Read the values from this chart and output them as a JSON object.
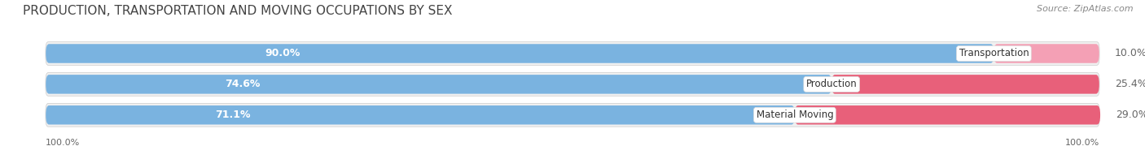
{
  "title": "PRODUCTION, TRANSPORTATION AND MOVING OCCUPATIONS BY SEX",
  "source": "Source: ZipAtlas.com",
  "categories": [
    "Transportation",
    "Production",
    "Material Moving"
  ],
  "male_pct": [
    90.0,
    74.6,
    71.1
  ],
  "female_pct": [
    10.0,
    25.4,
    29.0
  ],
  "male_color": "#7ab3e0",
  "female_color_transportation": "#f4a0b5",
  "female_color_production": "#e8607a",
  "female_color_moving": "#e8607a",
  "female_colors": [
    "#f4a0b5",
    "#e8607a",
    "#e8607a"
  ],
  "label_color_male": "#ffffff",
  "bar_height": 0.62,
  "row_bg_color": "#e8e8e8",
  "background_color": "#ffffff",
  "axis_label_left": "100.0%",
  "axis_label_right": "100.0%",
  "title_fontsize": 11,
  "source_fontsize": 8,
  "bar_label_fontsize": 9,
  "category_label_fontsize": 8.5,
  "legend_fontsize": 9
}
